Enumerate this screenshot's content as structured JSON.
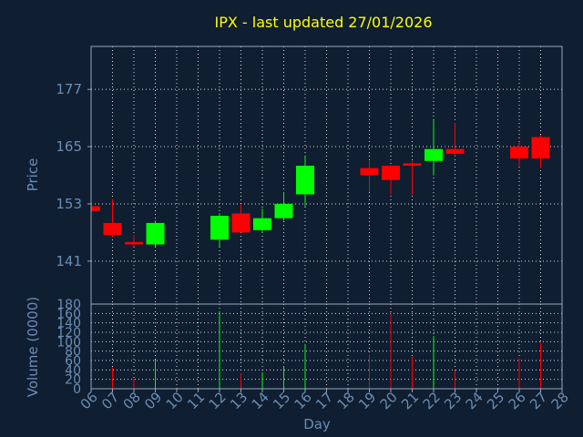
{
  "chart_data": {
    "type": "candlestick",
    "title": "IPX - last updated 27/01/2026",
    "ylabel": "Price",
    "volume_label": "Volume (0000)",
    "xlabel": "Day",
    "categories": [
      "06",
      "07",
      "08",
      "09",
      "10",
      "11",
      "12",
      "13",
      "14",
      "15",
      "16",
      "17",
      "18",
      "19",
      "20",
      "21",
      "22",
      "23",
      "24",
      "25",
      "26",
      "27",
      "28"
    ],
    "price_ticks": [
      "177",
      "165",
      "153",
      "141"
    ],
    "price_ylim": [
      132,
      186
    ],
    "volume_ticks": [
      "180",
      "160",
      "140",
      "120",
      "100",
      "80",
      "60",
      "40",
      "20",
      "0"
    ],
    "volume_ylim": [
      0,
      180
    ],
    "grid": true,
    "colors": {
      "up": "#00ff00",
      "down": "#ff0000",
      "title": "#ffff00",
      "axis_text": "#6a8db5",
      "background": "#0f1e30"
    },
    "candles": [
      {
        "day": "06",
        "open": 152.5,
        "high": 153.0,
        "low": 151.5,
        "close": 151.5,
        "volume": 0
      },
      {
        "day": "07",
        "open": 149.0,
        "high": 154.0,
        "low": 146.0,
        "close": 146.5,
        "volume": 45
      },
      {
        "day": "08",
        "open": 145.0,
        "high": 146.5,
        "low": 144.0,
        "close": 144.5,
        "volume": 22
      },
      {
        "day": "09",
        "open": 144.5,
        "high": 149.5,
        "low": 144.0,
        "close": 149.0,
        "volume": 62
      },
      {
        "day": "12",
        "open": 145.5,
        "high": 151.0,
        "low": 144.0,
        "close": 150.5,
        "volume": 165
      },
      {
        "day": "13",
        "open": 151.0,
        "high": 153.0,
        "low": 147.0,
        "close": 147.0,
        "volume": 33
      },
      {
        "day": "14",
        "open": 147.5,
        "high": 152.0,
        "low": 147.0,
        "close": 150.0,
        "volume": 35
      },
      {
        "day": "15",
        "open": 150.0,
        "high": 155.5,
        "low": 149.5,
        "close": 153.0,
        "volume": 48
      },
      {
        "day": "16",
        "open": 155.0,
        "high": 163.0,
        "low": 152.5,
        "close": 161.0,
        "volume": 95
      },
      {
        "day": "19",
        "open": 160.5,
        "high": 162.0,
        "low": 155.5,
        "close": 159.0,
        "volume": 72
      },
      {
        "day": "20",
        "open": 161.0,
        "high": 161.0,
        "low": 155.0,
        "close": 158.0,
        "volume": 160
      },
      {
        "day": "21",
        "open": 161.5,
        "high": 162.0,
        "low": 155.0,
        "close": 161.0,
        "volume": 68
      },
      {
        "day": "22",
        "open": 162.0,
        "high": 170.5,
        "low": 159.0,
        "close": 164.5,
        "volume": 112
      },
      {
        "day": "23",
        "open": 164.5,
        "high": 170.0,
        "low": 163.0,
        "close": 163.5,
        "volume": 40
      },
      {
        "day": "26",
        "open": 165.0,
        "high": 166.0,
        "low": 161.0,
        "close": 162.5,
        "volume": 65
      },
      {
        "day": "27",
        "open": 167.0,
        "high": 167.5,
        "low": 160.5,
        "close": 162.5,
        "volume": 98
      }
    ]
  }
}
